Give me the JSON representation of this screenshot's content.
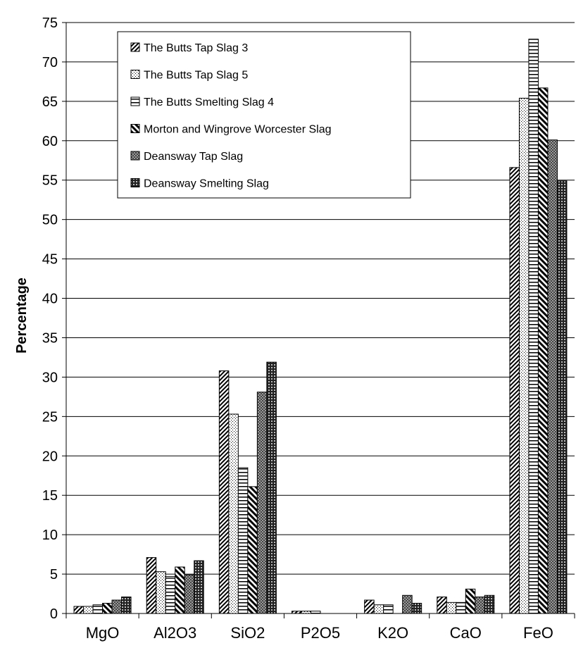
{
  "chart_data": {
    "type": "bar",
    "title": "",
    "xlabel": "",
    "ylabel": "Percentage",
    "ylim": [
      0,
      75
    ],
    "ytick_step": 5,
    "grid": true,
    "legend_position": "top-left",
    "categories": [
      "MgO",
      "Al2O3",
      "SiO2",
      "P2O5",
      "K2O",
      "CaO",
      "FeO"
    ],
    "series": [
      {
        "name": "The Butts Tap Slag 3",
        "pattern": "diag-up",
        "values": [
          0.9,
          7.1,
          30.8,
          0.3,
          1.7,
          2.1,
          56.6
        ]
      },
      {
        "name": "The Butts Tap Slag 5",
        "pattern": "dots",
        "values": [
          0.9,
          5.3,
          25.3,
          0.3,
          1.1,
          1.4,
          65.4
        ]
      },
      {
        "name": "The Butts Smelting Slag 4",
        "pattern": "hlines",
        "values": [
          1.1,
          4.7,
          18.5,
          0.3,
          1.1,
          1.4,
          72.9
        ]
      },
      {
        "name": "Morton and Wingrove Worcester Slag",
        "pattern": "diag-down",
        "values": [
          1.3,
          5.9,
          16.1,
          0,
          0,
          3.1,
          66.7
        ]
      },
      {
        "name": "Deansway Tap Slag",
        "pattern": "checker",
        "values": [
          1.7,
          4.9,
          28.1,
          0,
          2.3,
          2.1,
          60.1
        ]
      },
      {
        "name": "Deansway Smelting Slag",
        "pattern": "grid",
        "values": [
          2.1,
          6.7,
          31.9,
          0,
          1.3,
          2.3,
          54.9
        ]
      }
    ]
  }
}
